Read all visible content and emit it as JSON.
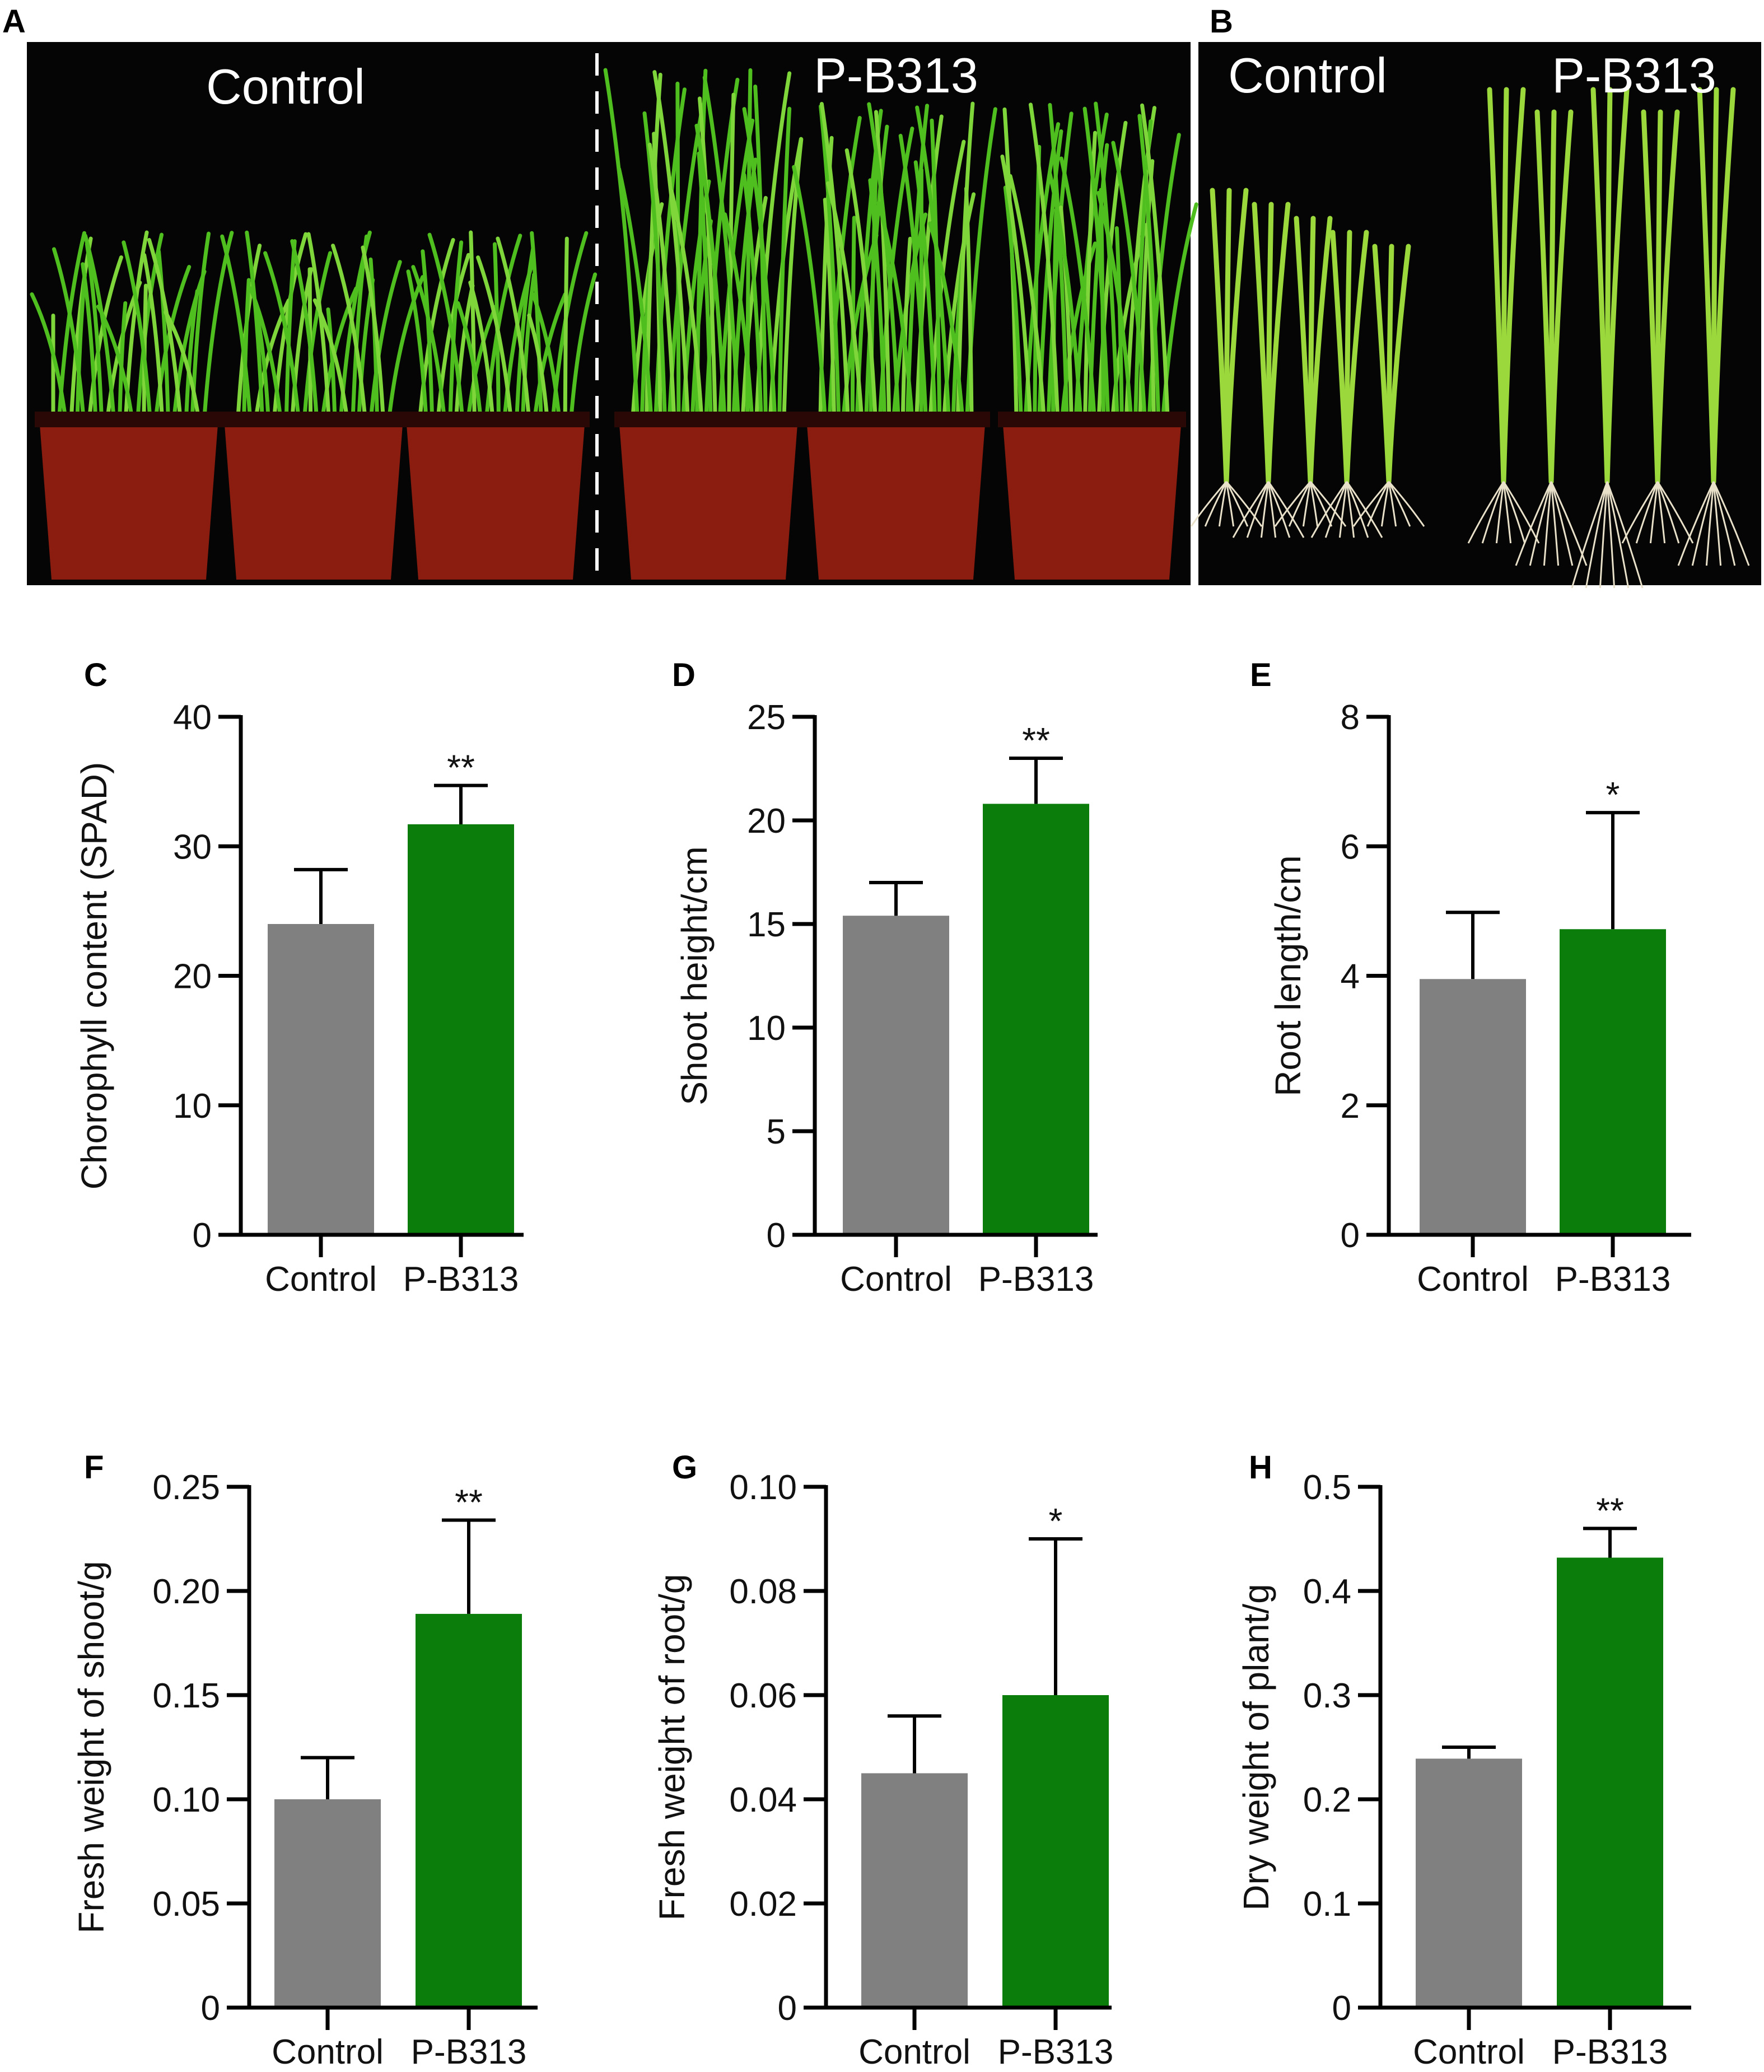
{
  "figure": {
    "panel_letters": [
      "A",
      "B"
    ],
    "photo_a": {
      "left_title": "Control",
      "right_title": "P-B313"
    },
    "photo_b": {
      "left_title": "Control",
      "right_title": "P-B313"
    }
  },
  "colors": {
    "control": "#808080",
    "treatment": "#0a7d0a",
    "photo_bg": "#050505",
    "pot": "#8a1c10",
    "leaf": "#4fbf1f"
  },
  "chart_data": [
    {
      "panel": "C",
      "type": "bar",
      "categories": [
        "Control",
        "P-B313"
      ],
      "values": [
        24.0,
        31.7
      ],
      "errors": [
        4.2,
        3.0
      ],
      "significance": [
        "",
        "**"
      ],
      "ylabel": "Chorophyll content (SPAD)",
      "xlabel": "",
      "ylim": [
        0,
        40
      ],
      "yticks": [
        0,
        10,
        20,
        30,
        40
      ],
      "ytick_labels": [
        "0",
        "10",
        "20",
        "30",
        "40"
      ]
    },
    {
      "panel": "D",
      "type": "bar",
      "categories": [
        "Control",
        "P-B313"
      ],
      "values": [
        15.4,
        20.8
      ],
      "errors": [
        1.6,
        2.2
      ],
      "significance": [
        "",
        "**"
      ],
      "ylabel": "Shoot height/cm",
      "xlabel": "",
      "ylim": [
        0,
        25
      ],
      "yticks": [
        0,
        5,
        10,
        15,
        20,
        25
      ],
      "ytick_labels": [
        "0",
        "5",
        "10",
        "15",
        "20",
        "25"
      ]
    },
    {
      "panel": "E",
      "type": "bar",
      "categories": [
        "Control",
        "P-B313"
      ],
      "values": [
        3.95,
        4.72
      ],
      "errors": [
        1.03,
        1.8
      ],
      "significance": [
        "",
        "*"
      ],
      "ylabel": "Root length/cm",
      "xlabel": "",
      "ylim": [
        0,
        8
      ],
      "yticks": [
        0,
        2,
        4,
        6,
        8
      ],
      "ytick_labels": [
        "0",
        "2",
        "4",
        "6",
        "8"
      ]
    },
    {
      "panel": "F",
      "type": "bar",
      "categories": [
        "Control",
        "P-B313"
      ],
      "values": [
        0.1,
        0.189
      ],
      "errors": [
        0.02,
        0.045
      ],
      "significance": [
        "",
        "**"
      ],
      "ylabel": "Fresh weight of shoot/g",
      "xlabel": "",
      "ylim": [
        0,
        0.25
      ],
      "yticks": [
        0,
        0.05,
        0.1,
        0.15,
        0.2,
        0.25
      ],
      "ytick_labels": [
        "0",
        "0.05",
        "0.10",
        "0.15",
        "0.20",
        "0.25"
      ]
    },
    {
      "panel": "G",
      "type": "bar",
      "categories": [
        "Control",
        "P-B313"
      ],
      "values": [
        0.045,
        0.06
      ],
      "errors": [
        0.011,
        0.03
      ],
      "significance": [
        "",
        "*"
      ],
      "ylabel": "Fresh weight of root/g",
      "xlabel": "",
      "ylim": [
        0,
        0.1
      ],
      "yticks": [
        0,
        0.02,
        0.04,
        0.06,
        0.08,
        0.1
      ],
      "ytick_labels": [
        "0",
        "0.02",
        "0.04",
        "0.06",
        "0.08",
        "0.10"
      ]
    },
    {
      "panel": "H",
      "type": "bar",
      "categories": [
        "Control",
        "P-B313"
      ],
      "values": [
        0.239,
        0.432
      ],
      "errors": [
        0.011,
        0.028
      ],
      "significance": [
        "",
        "**"
      ],
      "ylabel": "Dry weight of plant/g",
      "xlabel": "",
      "ylim": [
        0,
        0.5
      ],
      "yticks": [
        0,
        0.1,
        0.2,
        0.3,
        0.4,
        0.5
      ],
      "ytick_labels": [
        "0",
        "0.1",
        "0.2",
        "0.3",
        "0.4",
        "0.5"
      ]
    }
  ]
}
